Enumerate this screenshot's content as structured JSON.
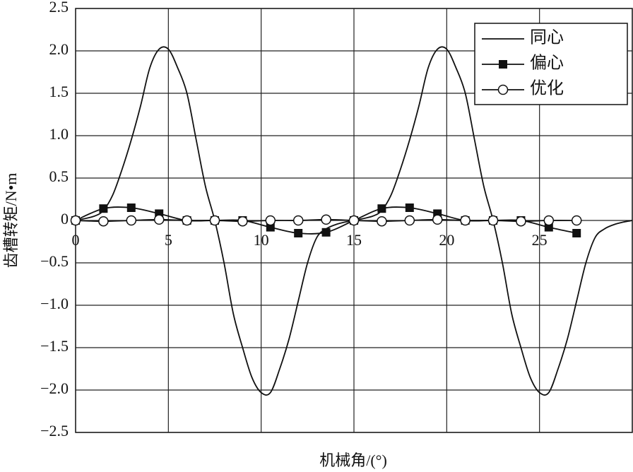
{
  "chart_data": {
    "type": "line",
    "x_label": "机械角/(°)",
    "y_label": "齿槽转矩/N•m",
    "xlim": [
      0,
      30
    ],
    "xticks": [
      0,
      5,
      10,
      15,
      20,
      25
    ],
    "ylim": [
      -2.5,
      2.5
    ],
    "yticks": [
      2.5,
      {
        "value": 2,
        "label": "2.0"
      },
      1.5,
      {
        "value": 1,
        "label": "1.0"
      },
      0.5,
      0,
      {
        "value": -0.5,
        "label": "−0.5"
      },
      {
        "value": -1,
        "label": "−1.0"
      },
      {
        "value": -1.5,
        "label": "−1.5"
      },
      {
        "value": -2,
        "label": "−2.0"
      },
      {
        "value": -2.5,
        "label": "−2.5"
      }
    ],
    "grid": true,
    "legend": "upper right",
    "series": [
      {
        "name": "同心",
        "color": "#111111",
        "marker": "none",
        "x": [
          0,
          1,
          1.5,
          2,
          2.5,
          3,
          3.5,
          4,
          4.5,
          5,
          5.5,
          6,
          6.5,
          7,
          7.5,
          8,
          8.5,
          9,
          9.5,
          10,
          10.5,
          11,
          11.5,
          12,
          12.5,
          13,
          13.5,
          14,
          14.5,
          15,
          16,
          16.5,
          17,
          17.5,
          18,
          18.5,
          19,
          19.5,
          20,
          20.5,
          21,
          21.5,
          22,
          22.5,
          23,
          23.5,
          24,
          24.5,
          25,
          25.5,
          26,
          26.5,
          27,
          27.5,
          28,
          28.5,
          29,
          29.5,
          30
        ],
        "values": [
          0,
          0.05,
          0.12,
          0.3,
          0.6,
          0.95,
          1.35,
          1.8,
          2.02,
          2.02,
          1.8,
          1.5,
          0.95,
          0.4,
          0,
          -0.5,
          -1.1,
          -1.5,
          -1.85,
          -2.03,
          -2.03,
          -1.75,
          -1.4,
          -0.95,
          -0.5,
          -0.2,
          -0.1,
          -0.05,
          -0.02,
          0,
          0.05,
          0.12,
          0.3,
          0.6,
          0.95,
          1.35,
          1.8,
          2.02,
          2.02,
          1.8,
          1.5,
          0.95,
          0.4,
          0,
          -0.5,
          -1.1,
          -1.5,
          -1.85,
          -2.03,
          -2.03,
          -1.75,
          -1.4,
          -0.95,
          -0.5,
          -0.2,
          -0.1,
          -0.05,
          -0.02,
          0
        ]
      },
      {
        "name": "偏心",
        "color": "#111111",
        "marker": "square",
        "x": [
          0,
          1.5,
          3,
          4.5,
          6,
          7.5,
          9,
          10.5,
          12,
          13.5,
          15,
          16.5,
          18,
          19.5,
          21,
          22.5,
          24,
          25.5,
          27
        ],
        "values": [
          0,
          0.14,
          0.15,
          0.08,
          0,
          0,
          0,
          -0.08,
          -0.15,
          -0.14,
          0,
          0.14,
          0.15,
          0.08,
          0,
          0,
          0,
          -0.08,
          -0.15
        ]
      },
      {
        "name": "优化",
        "color": "#111111",
        "marker": "circle",
        "x": [
          0,
          1.5,
          3,
          4.5,
          6,
          7.5,
          9,
          10.5,
          12,
          13.5,
          15,
          16.5,
          18,
          19.5,
          21,
          22.5,
          24,
          25.5,
          27
        ],
        "values": [
          0,
          -0.01,
          0,
          0.01,
          0,
          0,
          -0.01,
          0,
          0,
          0.01,
          0,
          -0.01,
          0,
          0.01,
          0,
          0,
          -0.01,
          0,
          0
        ]
      }
    ]
  }
}
